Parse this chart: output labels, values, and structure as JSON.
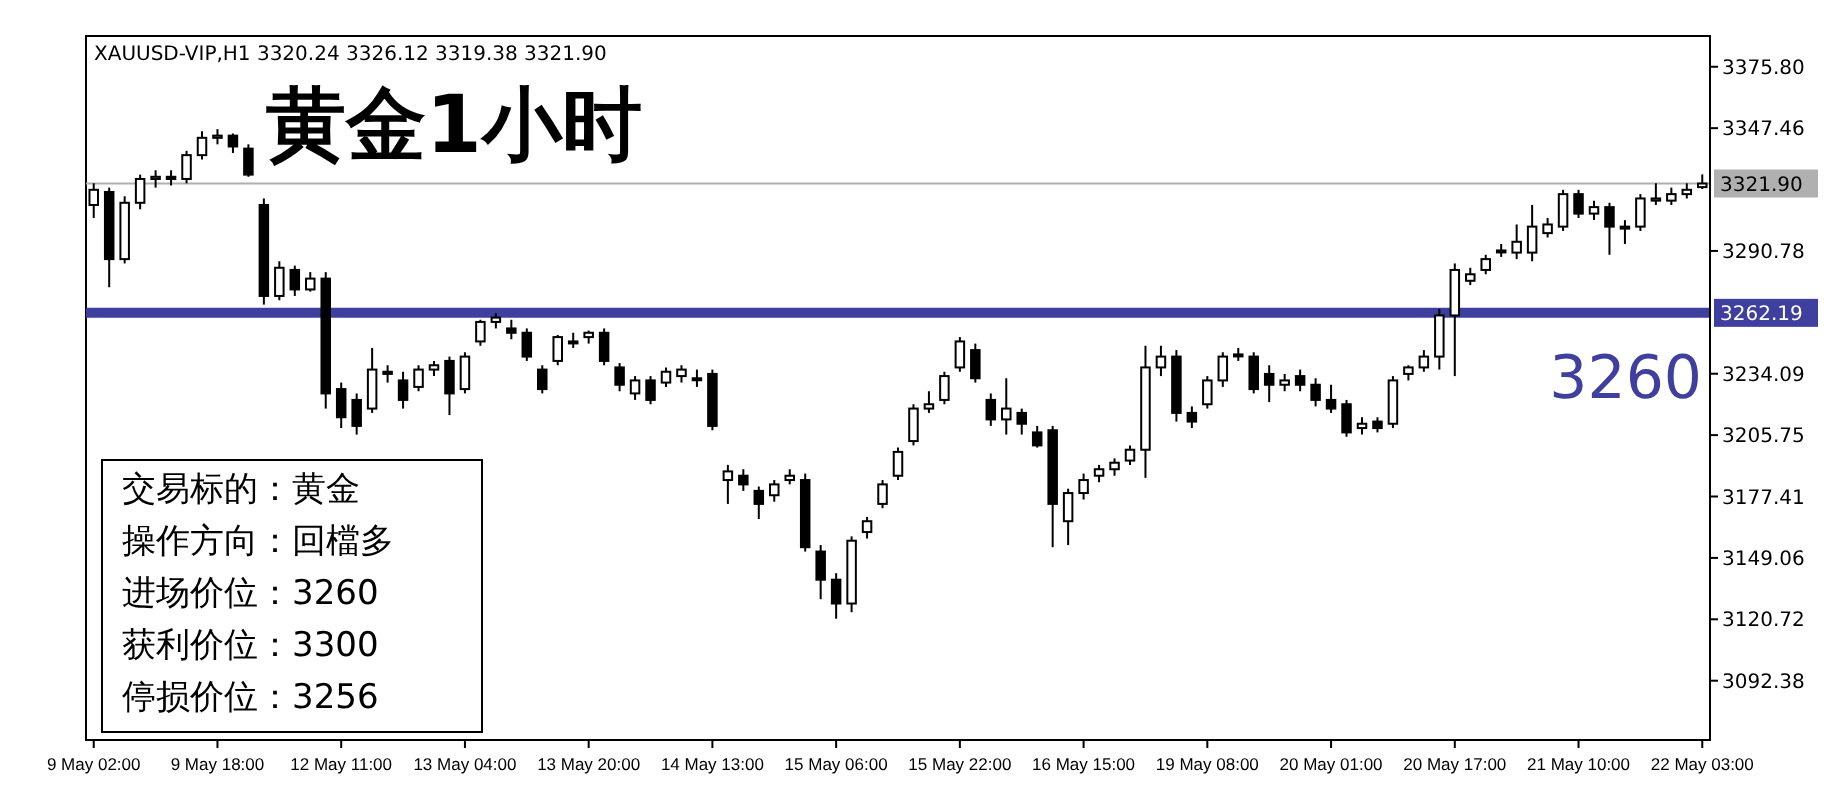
{
  "chart_data": {
    "type": "candlestick",
    "title": "黄金1小时",
    "subtitle": "XAUUSD-VIP,H1  3320.24 3326.12 3319.38 3321.90",
    "categories": [
      "9 May 02:00",
      null,
      null,
      null,
      null,
      null,
      null,
      null,
      "9 May 18:00",
      null,
      null,
      null,
      null,
      null,
      null,
      null,
      "12 May 11:00",
      null,
      null,
      null,
      null,
      null,
      null,
      null,
      "13 May 04:00",
      null,
      null,
      null,
      null,
      null,
      null,
      null,
      "13 May 20:00",
      null,
      null,
      null,
      null,
      null,
      null,
      null,
      "14 May 13:00",
      null,
      null,
      null,
      null,
      null,
      null,
      null,
      "15 May 06:00",
      null,
      null,
      null,
      null,
      null,
      null,
      null,
      "15 May 22:00",
      null,
      null,
      null,
      null,
      null,
      null,
      null,
      "16 May 15:00",
      null,
      null,
      null,
      null,
      null,
      null,
      null,
      "19 May 08:00",
      null,
      null,
      null,
      null,
      null,
      null,
      null,
      "20 May 01:00",
      null,
      null,
      null,
      null,
      null,
      null,
      null,
      "20 May 17:00",
      null,
      null,
      null,
      null,
      null,
      null,
      null,
      "21 May 10:00",
      null,
      null,
      null,
      null,
      null,
      null,
      null,
      "22 May 03:00"
    ],
    "ohlc": [
      [
        3312,
        3322,
        3306,
        3319
      ],
      [
        3318,
        3320,
        3274,
        3287
      ],
      [
        3287,
        3316,
        3285,
        3313
      ],
      [
        3313,
        3326,
        3310,
        3324
      ],
      [
        3324,
        3328,
        3320,
        3325
      ],
      [
        3325,
        3328,
        3321,
        3324
      ],
      [
        3324,
        3337,
        3322,
        3335
      ],
      [
        3335,
        3346,
        3333,
        3343
      ],
      [
        3343,
        3347,
        3340,
        3344
      ],
      [
        3344,
        3345,
        3336,
        3339
      ],
      [
        3338,
        3340,
        3325,
        3326
      ],
      [
        3312,
        3315,
        3266,
        3270
      ],
      [
        3270,
        3286,
        3268,
        3283
      ],
      [
        3282,
        3284,
        3270,
        3273
      ],
      [
        3273,
        3281,
        3272,
        3278
      ],
      [
        3278,
        3281,
        3218,
        3225
      ],
      [
        3227,
        3230,
        3209,
        3214
      ],
      [
        3222,
        3225,
        3206,
        3210
      ],
      [
        3218,
        3246,
        3216,
        3236
      ],
      [
        3235,
        3238,
        3230,
        3234
      ],
      [
        3231,
        3235,
        3218,
        3222
      ],
      [
        3228,
        3238,
        3226,
        3236
      ],
      [
        3236,
        3240,
        3233,
        3238
      ],
      [
        3240,
        3242,
        3215,
        3225
      ],
      [
        3227,
        3244,
        3225,
        3242
      ],
      [
        3249,
        3259,
        3247,
        3258
      ],
      [
        3258,
        3262,
        3255,
        3260
      ],
      [
        3255,
        3259,
        3250,
        3253
      ],
      [
        3253,
        3255,
        3240,
        3242
      ],
      [
        3236,
        3238,
        3225,
        3227
      ],
      [
        3240,
        3252,
        3238,
        3251
      ],
      [
        3249,
        3253,
        3246,
        3249
      ],
      [
        3251,
        3254,
        3248,
        3253
      ],
      [
        3253,
        3255,
        3238,
        3240
      ],
      [
        3237,
        3239,
        3226,
        3229
      ],
      [
        3225,
        3233,
        3222,
        3231
      ],
      [
        3231,
        3233,
        3220,
        3222
      ],
      [
        3230,
        3237,
        3228,
        3235
      ],
      [
        3233,
        3238,
        3230,
        3236
      ],
      [
        3232,
        3236,
        3228,
        3232
      ],
      [
        3234,
        3236,
        3208,
        3210
      ],
      [
        3185,
        3192,
        3174,
        3189
      ],
      [
        3187,
        3190,
        3180,
        3183
      ],
      [
        3180,
        3182,
        3167,
        3174
      ],
      [
        3178,
        3185,
        3175,
        3183
      ],
      [
        3185,
        3190,
        3183,
        3187
      ],
      [
        3185,
        3188,
        3152,
        3154
      ],
      [
        3152,
        3155,
        3130,
        3139
      ],
      [
        3139,
        3142,
        3121,
        3128
      ],
      [
        3128,
        3159,
        3124,
        3157
      ],
      [
        3161,
        3168,
        3158,
        3166
      ],
      [
        3174,
        3185,
        3172,
        3183
      ],
      [
        3187,
        3200,
        3185,
        3198
      ],
      [
        3203,
        3220,
        3201,
        3218
      ],
      [
        3218,
        3226,
        3216,
        3220
      ],
      [
        3222,
        3235,
        3220,
        3233
      ],
      [
        3237,
        3251,
        3235,
        3249
      ],
      [
        3245,
        3248,
        3230,
        3232
      ],
      [
        3222,
        3225,
        3210,
        3213
      ],
      [
        3213,
        3232,
        3206,
        3218
      ],
      [
        3216,
        3218,
        3206,
        3211
      ],
      [
        3207,
        3210,
        3200,
        3201
      ],
      [
        3208,
        3210,
        3154,
        3174
      ],
      [
        3166,
        3181,
        3155,
        3179
      ],
      [
        3179,
        3188,
        3176,
        3185
      ],
      [
        3187,
        3192,
        3184,
        3190
      ],
      [
        3190,
        3195,
        3187,
        3193
      ],
      [
        3194,
        3201,
        3192,
        3199
      ],
      [
        3199,
        3247,
        3186,
        3237
      ],
      [
        3237,
        3247,
        3233,
        3242
      ],
      [
        3242,
        3245,
        3212,
        3216
      ],
      [
        3216,
        3219,
        3209,
        3212
      ],
      [
        3220,
        3233,
        3218,
        3231
      ],
      [
        3231,
        3244,
        3228,
        3242
      ],
      [
        3243,
        3246,
        3240,
        3243
      ],
      [
        3242,
        3244,
        3225,
        3227
      ],
      [
        3234,
        3238,
        3221,
        3229
      ],
      [
        3229,
        3234,
        3226,
        3231
      ],
      [
        3233,
        3236,
        3226,
        3229
      ],
      [
        3229,
        3232,
        3219,
        3222
      ],
      [
        3222,
        3229,
        3216,
        3218
      ],
      [
        3220,
        3222,
        3205,
        3207
      ],
      [
        3209,
        3214,
        3206,
        3211
      ],
      [
        3212,
        3214,
        3207,
        3209
      ],
      [
        3211,
        3233,
        3209,
        3231
      ],
      [
        3234,
        3238,
        3231,
        3237
      ],
      [
        3237,
        3245,
        3235,
        3242
      ],
      [
        3242,
        3264,
        3236,
        3261
      ],
      [
        3261,
        3285,
        3233,
        3282
      ],
      [
        3277,
        3283,
        3275,
        3280
      ],
      [
        3282,
        3289,
        3280,
        3287
      ],
      [
        3291,
        3294,
        3288,
        3291
      ],
      [
        3290,
        3303,
        3287,
        3295
      ],
      [
        3290,
        3312,
        3286,
        3302
      ],
      [
        3299,
        3306,
        3297,
        3303
      ],
      [
        3302,
        3319,
        3300,
        3317
      ],
      [
        3317,
        3319,
        3306,
        3308
      ],
      [
        3308,
        3314,
        3305,
        3311
      ],
      [
        3311,
        3313,
        3289,
        3302
      ],
      [
        3302,
        3305,
        3294,
        3302
      ],
      [
        3302,
        3317,
        3300,
        3315
      ],
      [
        3314,
        3322,
        3312,
        3315
      ],
      [
        3314,
        3320,
        3312,
        3317
      ],
      [
        3317,
        3322,
        3315,
        3319
      ],
      [
        3320.24,
        3326.12,
        3319.38,
        3321.9
      ]
    ],
    "ylim": [
      3065,
      3390
    ],
    "yticks": [
      {
        "value": 3375.8,
        "label": "3375.80"
      },
      3347.46,
      3290.78,
      3234.09,
      3205.75,
      3177.41,
      3149.06,
      3120.72,
      3092.38
    ],
    "ref_lines": [
      {
        "axis": "y",
        "value": 3321.9,
        "label": "3321.90",
        "color": "#b0b0b0"
      },
      {
        "axis": "y",
        "value": 3262.19,
        "label": "3262.19",
        "color": "#3f3f9f"
      }
    ],
    "annotations": [
      "交易标的：黄金",
      "操作方向：回檔多",
      "进场价位：3260",
      "获利价位：3300",
      "停损价位：3256",
      {
        "text": "3260",
        "y": 3260
      }
    ],
    "grid": false
  }
}
